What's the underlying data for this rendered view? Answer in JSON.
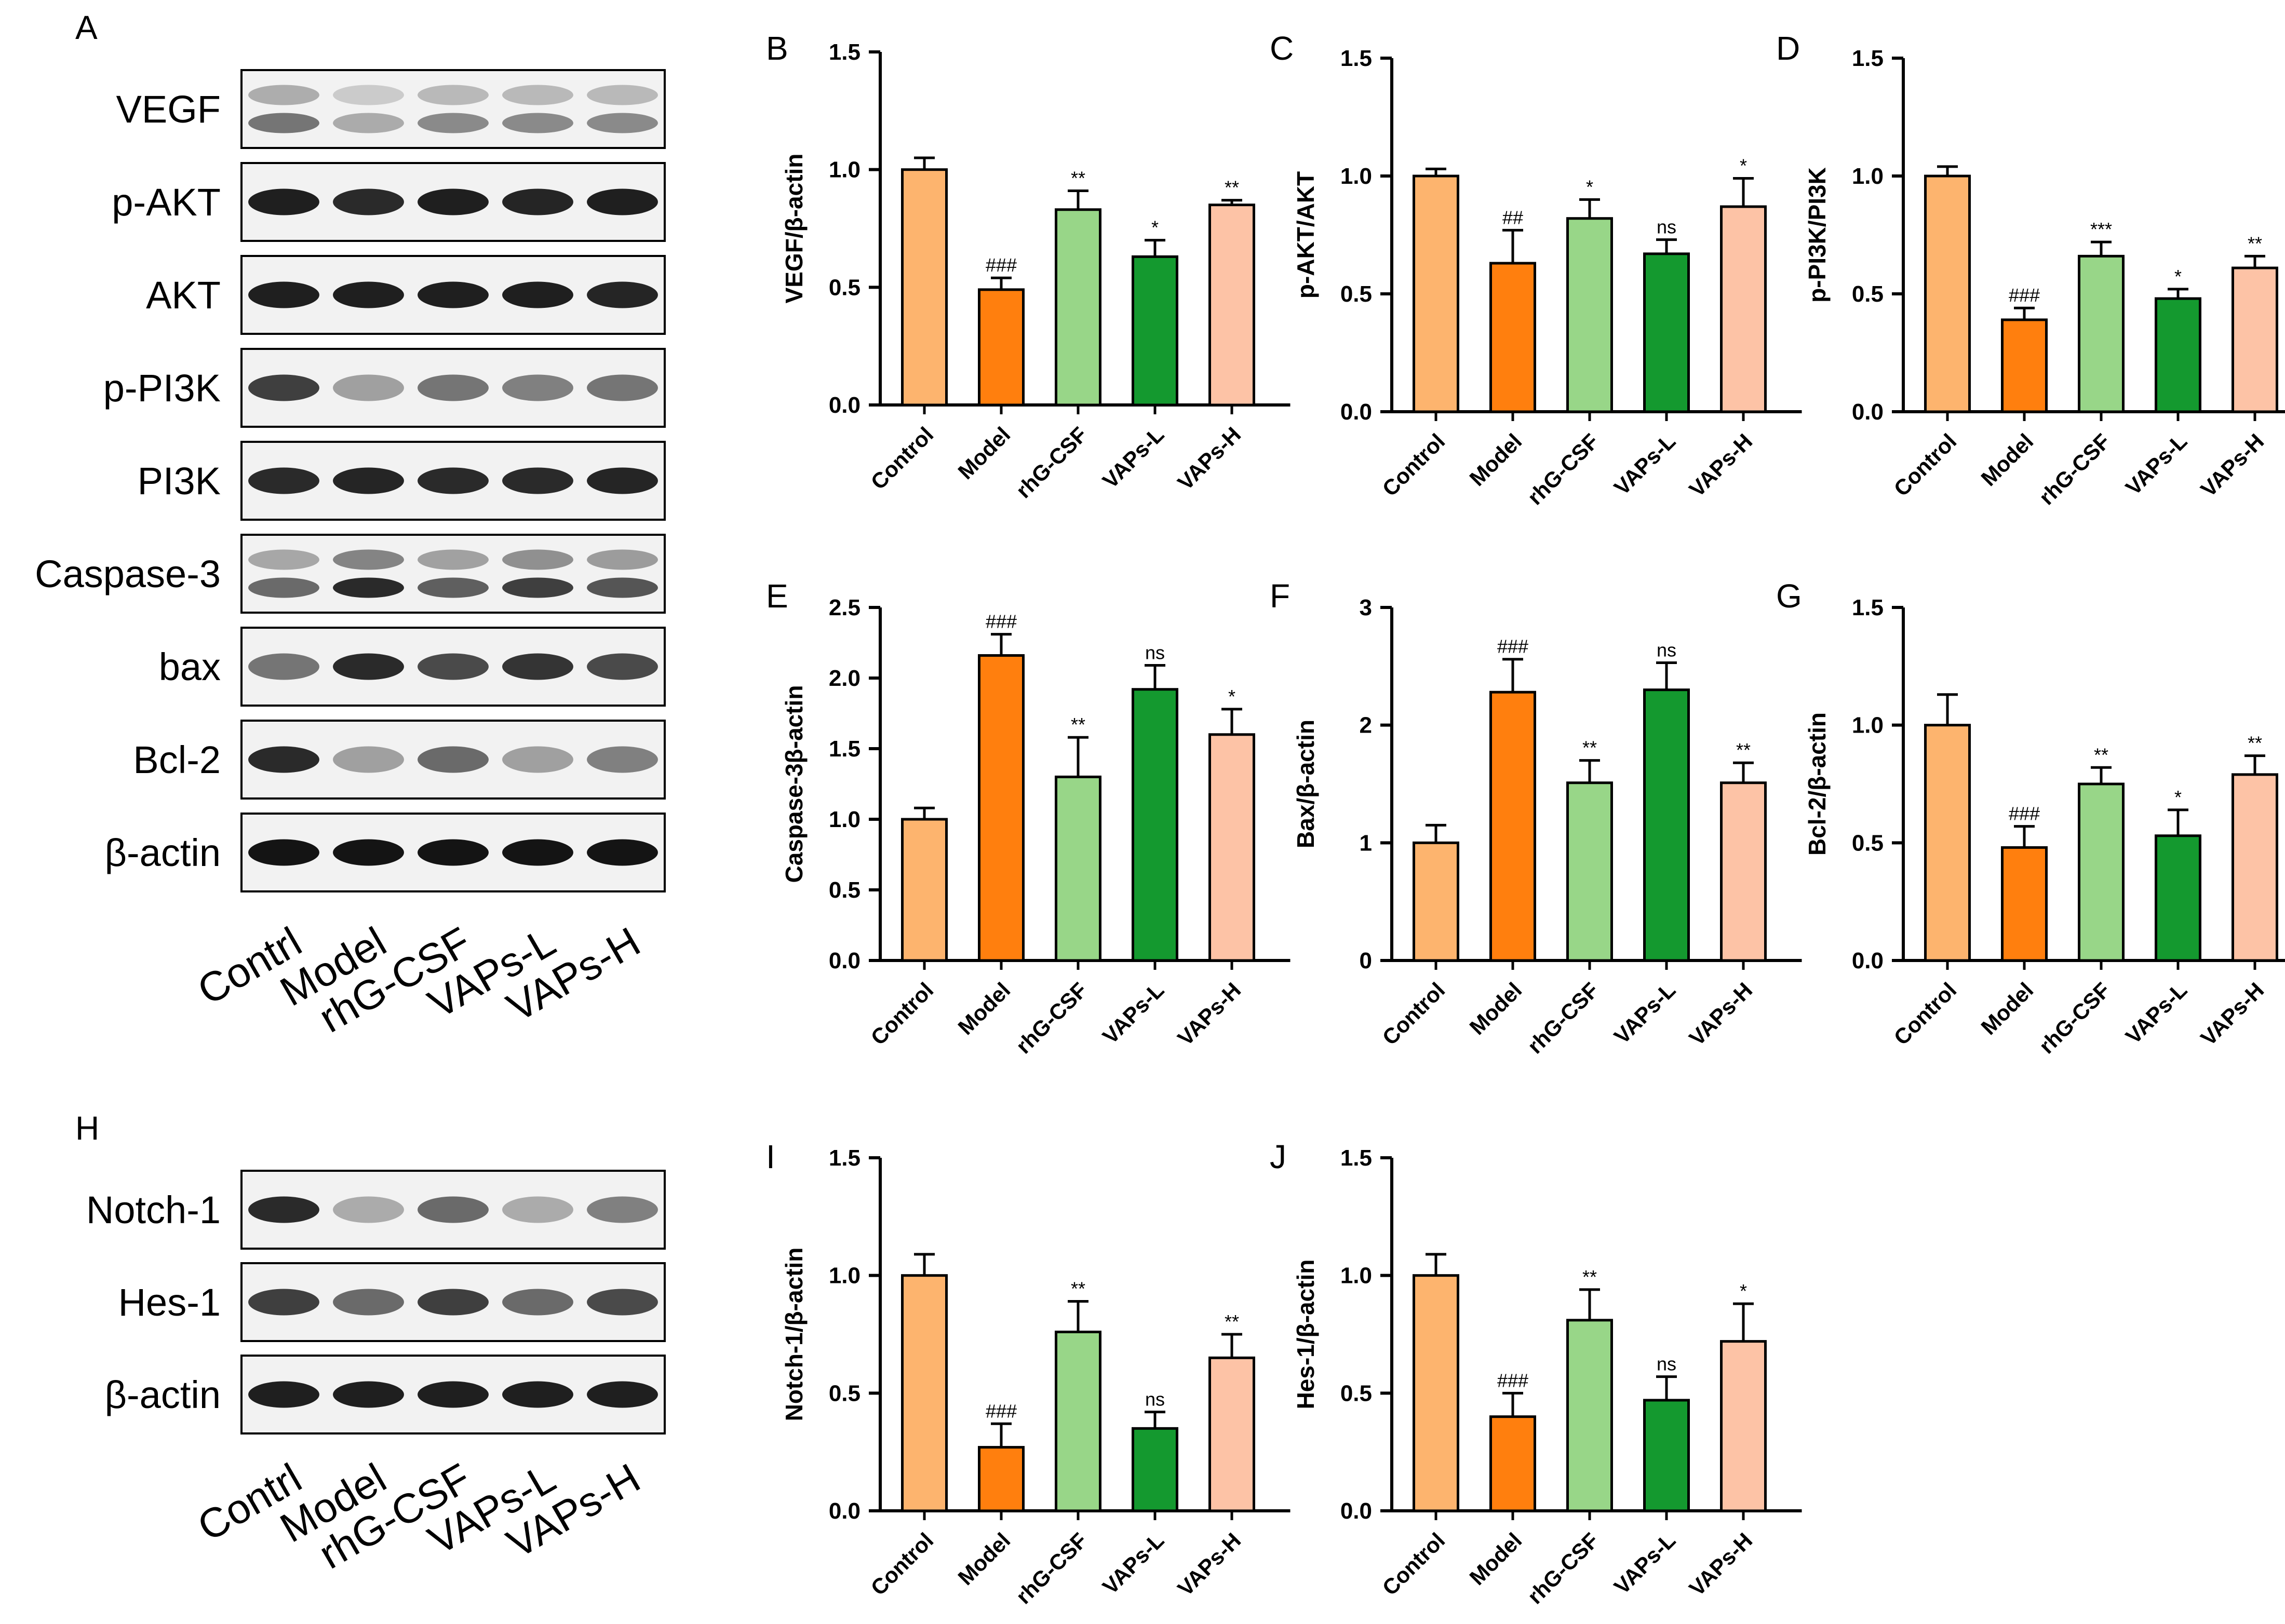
{
  "figure": {
    "panel_A": {
      "letter": "A",
      "rows": [
        {
          "label": "VEGF",
          "intensities": [
            0.55,
            0.3,
            0.45,
            0.45,
            0.45
          ],
          "double": true
        },
        {
          "label": "p-AKT",
          "intensities": [
            0.95,
            0.9,
            0.95,
            0.92,
            0.95
          ],
          "double": false
        },
        {
          "label": "AKT",
          "intensities": [
            0.95,
            0.95,
            0.95,
            0.95,
            0.92
          ],
          "double": false
        },
        {
          "label": "p-PI3K",
          "intensities": [
            0.8,
            0.35,
            0.55,
            0.5,
            0.55
          ],
          "double": false
        },
        {
          "label": "PI3K",
          "intensities": [
            0.9,
            0.92,
            0.9,
            0.9,
            0.92
          ],
          "double": false
        },
        {
          "label": "Caspase-3",
          "intensities": [
            0.6,
            0.9,
            0.65,
            0.8,
            0.7
          ],
          "double": true
        },
        {
          "label": "bax",
          "intensities": [
            0.55,
            0.9,
            0.75,
            0.85,
            0.75
          ],
          "double": false
        },
        {
          "label": "Bcl-2",
          "intensities": [
            0.9,
            0.35,
            0.6,
            0.35,
            0.5
          ],
          "double": false
        },
        {
          "label": "β-actin",
          "intensities": [
            1,
            1,
            1,
            1,
            1
          ],
          "double": false
        }
      ],
      "lanes": [
        "Contrl",
        "Model",
        "rhG-CSF",
        "VAPs-L",
        "VAPs-H"
      ]
    },
    "panel_H": {
      "letter": "H",
      "rows": [
        {
          "label": "Notch-1",
          "intensities": [
            0.9,
            0.3,
            0.6,
            0.3,
            0.5
          ],
          "double": false
        },
        {
          "label": "Hes-1",
          "intensities": [
            0.8,
            0.6,
            0.8,
            0.6,
            0.75
          ],
          "double": false
        },
        {
          "label": "β-actin",
          "intensities": [
            0.95,
            0.95,
            0.95,
            0.95,
            0.95
          ],
          "double": false
        }
      ],
      "lanes": [
        "Contrl",
        "Model",
        "rhG-CSF",
        "VAPs-L",
        "VAPs-H"
      ]
    }
  },
  "colors": [
    "#FDB46E",
    "#FF7F0E",
    "#98D688",
    "#14992F",
    "#FDC3A6"
  ],
  "chart_data": [
    {
      "id": "B",
      "type": "bar",
      "title": "",
      "ylabel": "VEGF/β-actin",
      "ylim": [
        0,
        1.5
      ],
      "yticks": [
        "0.0",
        "0.5",
        "1.0",
        "1.5"
      ],
      "categories": [
        "Control",
        "Model",
        "rhG-CSF",
        "VAPs-L",
        "VAPs-H"
      ],
      "values": [
        1.0,
        0.49,
        0.83,
        0.63,
        0.85
      ],
      "errors": [
        0.05,
        0.05,
        0.08,
        0.07,
        0.02
      ],
      "annotations": [
        "",
        "###",
        "**",
        "*",
        "**"
      ]
    },
    {
      "id": "C",
      "type": "bar",
      "title": "",
      "ylabel": "p-AKT/AKT",
      "ylim": [
        0,
        1.5
      ],
      "yticks": [
        "0.0",
        "0.5",
        "1.0",
        "1.5"
      ],
      "categories": [
        "Control",
        "Model",
        "rhG-CSF",
        "VAPs-L",
        "VAPs-H"
      ],
      "values": [
        1.0,
        0.63,
        0.82,
        0.67,
        0.87
      ],
      "errors": [
        0.03,
        0.14,
        0.08,
        0.06,
        0.12
      ],
      "annotations": [
        "",
        "##",
        "*",
        "ns",
        "*"
      ]
    },
    {
      "id": "D",
      "type": "bar",
      "title": "",
      "ylabel": "p-PI3K/PI3K",
      "ylim": [
        0,
        1.5
      ],
      "yticks": [
        "0.0",
        "0.5",
        "1.0",
        "1.5"
      ],
      "categories": [
        "Control",
        "Model",
        "rhG-CSF",
        "VAPs-L",
        "VAPs-H"
      ],
      "values": [
        1.0,
        0.39,
        0.66,
        0.48,
        0.61
      ],
      "errors": [
        0.04,
        0.05,
        0.06,
        0.04,
        0.05
      ],
      "annotations": [
        "",
        "###",
        "***",
        "*",
        "**"
      ]
    },
    {
      "id": "E",
      "type": "bar",
      "title": "",
      "ylabel": "Caspase-3β-actin",
      "ylim": [
        0,
        2.5
      ],
      "yticks": [
        "0.0",
        "0.5",
        "1.0",
        "1.5",
        "2.0",
        "2.5"
      ],
      "categories": [
        "Control",
        "Model",
        "rhG-CSF",
        "VAPs-L",
        "VAPs-H"
      ],
      "values": [
        1.0,
        2.16,
        1.3,
        1.92,
        1.6
      ],
      "errors": [
        0.08,
        0.15,
        0.28,
        0.17,
        0.18
      ],
      "annotations": [
        "",
        "###",
        "**",
        "ns",
        "*"
      ]
    },
    {
      "id": "F",
      "type": "bar",
      "title": "",
      "ylabel": "Bax/β-actin",
      "ylim": [
        0,
        3
      ],
      "yticks": [
        "0",
        "1",
        "2",
        "3"
      ],
      "categories": [
        "Control",
        "Model",
        "rhG-CSF",
        "VAPs-L",
        "VAPs-H"
      ],
      "values": [
        1.0,
        2.28,
        1.51,
        2.3,
        1.51
      ],
      "errors": [
        0.15,
        0.28,
        0.19,
        0.23,
        0.17
      ],
      "annotations": [
        "",
        "###",
        "**",
        "ns",
        "**"
      ]
    },
    {
      "id": "G",
      "type": "bar",
      "title": "",
      "ylabel": "Bcl-2/β-actin",
      "ylim": [
        0,
        1.5
      ],
      "yticks": [
        "0.0",
        "0.5",
        "1.0",
        "1.5"
      ],
      "categories": [
        "Control",
        "Model",
        "rhG-CSF",
        "VAPs-L",
        "VAPs-H"
      ],
      "values": [
        1.0,
        0.48,
        0.75,
        0.53,
        0.79
      ],
      "errors": [
        0.13,
        0.09,
        0.07,
        0.11,
        0.08
      ],
      "annotations": [
        "",
        "###",
        "**",
        "*",
        "**"
      ]
    },
    {
      "id": "I",
      "type": "bar",
      "title": "",
      "ylabel": "Notch-1/β-actin",
      "ylim": [
        0,
        1.5
      ],
      "yticks": [
        "0.0",
        "0.5",
        "1.0",
        "1.5"
      ],
      "categories": [
        "Control",
        "Model",
        "rhG-CSF",
        "VAPs-L",
        "VAPs-H"
      ],
      "values": [
        1.0,
        0.27,
        0.76,
        0.35,
        0.65
      ],
      "errors": [
        0.09,
        0.1,
        0.13,
        0.07,
        0.1
      ],
      "annotations": [
        "",
        "###",
        "**",
        "ns",
        "**"
      ]
    },
    {
      "id": "J",
      "type": "bar",
      "title": "",
      "ylabel": "Hes-1/β-actin",
      "ylim": [
        0,
        1.5
      ],
      "yticks": [
        "0.0",
        "0.5",
        "1.0",
        "1.5"
      ],
      "categories": [
        "Control",
        "Model",
        "rhG-CSF",
        "VAPs-L",
        "VAPs-H"
      ],
      "values": [
        1.0,
        0.4,
        0.81,
        0.47,
        0.72
      ],
      "errors": [
        0.09,
        0.1,
        0.13,
        0.1,
        0.16
      ],
      "annotations": [
        "",
        "###",
        "**",
        "ns",
        "*"
      ]
    }
  ]
}
